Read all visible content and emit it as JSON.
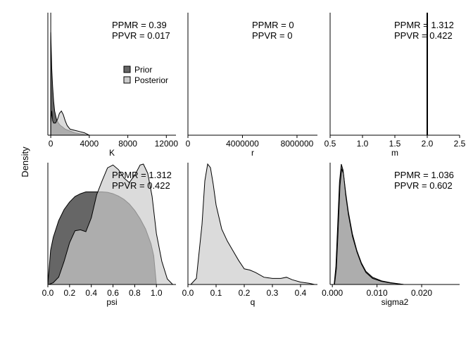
{
  "figure": {
    "ylabel": "Density",
    "legend": {
      "position": "middle-right of first panel",
      "entries": [
        {
          "label": "Prior",
          "color": "#666666"
        },
        {
          "label": "Posterior",
          "color": "#cccccc"
        }
      ]
    }
  },
  "chart_data": [
    {
      "type": "area",
      "xlabel": "K",
      "xlim": [
        -300,
        13000
      ],
      "xticks": [
        0,
        4000,
        8000,
        12000
      ],
      "xtick_labels": [
        "0",
        "4000",
        "8000",
        "12000"
      ],
      "annotation": [
        "PPMR = 0.39",
        "PPVR = 0.017"
      ],
      "vline": 0,
      "series": [
        {
          "name": "Prior",
          "x": [
            0,
            100,
            200,
            300,
            400,
            600,
            800,
            1000,
            1200,
            1500,
            2000,
            2500,
            3000,
            3500,
            4000
          ],
          "y": [
            0.85,
            0.55,
            0.4,
            0.28,
            0.2,
            0.13,
            0.1,
            0.08,
            0.07,
            0.05,
            0.035,
            0.02,
            0.012,
            0.006,
            0
          ]
        },
        {
          "name": "Posterior",
          "x": [
            0,
            100,
            200,
            300,
            400,
            500,
            700,
            900,
            1100,
            1300,
            1500,
            1700,
            2000,
            2500,
            3000,
            3500,
            4000
          ],
          "y": [
            0.1,
            0.2,
            0.12,
            0.1,
            0.1,
            0.1,
            0.13,
            0.18,
            0.2,
            0.17,
            0.12,
            0.08,
            0.05,
            0.04,
            0.03,
            0.02,
            0
          ]
        }
      ]
    },
    {
      "type": "area",
      "xlabel": "r",
      "xlim": [
        0,
        9500000
      ],
      "xticks": [
        0,
        4000000,
        8000000
      ],
      "xtick_labels": [
        "0",
        "4000000",
        "8000000"
      ],
      "annotation": [
        "PPMR = 0",
        "PPVR = 0"
      ],
      "series": []
    },
    {
      "type": "area",
      "xlabel": "m",
      "xlim": [
        0.5,
        2.5
      ],
      "xticks": [
        0.5,
        1.0,
        1.5,
        2.0,
        2.5
      ],
      "xtick_labels": [
        "0.5",
        "1.0",
        "1.5",
        "2.0",
        "2.5"
      ],
      "annotation": [
        "PPMR = 1.312",
        "PPVR = 0.422"
      ],
      "vline": 2.0,
      "series": []
    },
    {
      "type": "area",
      "xlabel": "psi",
      "xlim": [
        0,
        1.18
      ],
      "xticks": [
        0,
        0.2,
        0.4,
        0.6,
        0.8,
        1.0
      ],
      "xtick_labels": [
        "0.0",
        "0.2",
        "0.4",
        "0.6",
        "0.8",
        "1.0"
      ],
      "annotation": [
        "PPMR = 1.312",
        "PPVR = 0.422"
      ],
      "series": [
        {
          "name": "Prior",
          "x": [
            0,
            0.025,
            0.05,
            0.1,
            0.15,
            0.2,
            0.25,
            0.3,
            0.35,
            0.4,
            0.45,
            0.5,
            0.55,
            0.6,
            0.65,
            0.7,
            0.75,
            0.8,
            0.85,
            0.9,
            0.95,
            0.975,
            1.0
          ],
          "y": [
            0,
            0.37,
            0.51,
            0.69,
            0.81,
            0.89,
            0.95,
            0.98,
            1.0,
            1.0,
            1.0,
            1.0,
            0.995,
            0.98,
            0.955,
            0.92,
            0.87,
            0.8,
            0.71,
            0.6,
            0.44,
            0.31,
            0
          ]
        },
        {
          "name": "Posterior",
          "x": [
            0.01,
            0.05,
            0.1,
            0.15,
            0.2,
            0.25,
            0.3,
            0.35,
            0.4,
            0.45,
            0.5,
            0.55,
            0.6,
            0.65,
            0.7,
            0.75,
            0.8,
            0.85,
            0.88,
            0.92,
            0.96,
            1.0,
            1.05,
            1.1,
            1.15
          ],
          "y": [
            0,
            0.02,
            0.08,
            0.25,
            0.45,
            0.58,
            0.59,
            0.57,
            0.72,
            0.97,
            1.12,
            1.26,
            1.29,
            1.24,
            1.15,
            1.1,
            1.18,
            1.29,
            1.3,
            1.2,
            0.95,
            0.55,
            0.25,
            0.06,
            0
          ]
        }
      ]
    },
    {
      "type": "area",
      "xlabel": "q",
      "xlim": [
        0,
        0.46
      ],
      "xticks": [
        0,
        0.1,
        0.2,
        0.3,
        0.4
      ],
      "xtick_labels": [
        "0.0",
        "0.1",
        "0.2",
        "0.3",
        "0.4"
      ],
      "annotation": [],
      "series": [
        {
          "name": "Posterior",
          "x": [
            0.01,
            0.03,
            0.05,
            0.06,
            0.07,
            0.08,
            0.09,
            0.1,
            0.12,
            0.14,
            0.16,
            0.18,
            0.2,
            0.22,
            0.24,
            0.27,
            0.3,
            0.33,
            0.35,
            0.37,
            0.4,
            0.43,
            0.45
          ],
          "y": [
            0,
            0.05,
            0.5,
            0.86,
            1.0,
            0.97,
            0.83,
            0.66,
            0.46,
            0.36,
            0.28,
            0.2,
            0.13,
            0.12,
            0.1,
            0.06,
            0.05,
            0.05,
            0.06,
            0.04,
            0.02,
            0.01,
            0
          ]
        }
      ]
    },
    {
      "type": "area",
      "xlabel": "sigma2",
      "xlim": [
        -0.0005,
        0.0285
      ],
      "xticks": [
        0,
        0.01,
        0.02
      ],
      "xtick_labels": [
        "0.000",
        "0.010",
        "0.020"
      ],
      "annotation": [
        "PPMR = 1.036",
        "PPVR = 0.602"
      ],
      "series": [
        {
          "name": "Prior",
          "x": [
            0.0004,
            0.0008,
            0.0012,
            0.0016,
            0.002,
            0.0024,
            0.003,
            0.0036,
            0.0045,
            0.0055,
            0.0065,
            0.0075,
            0.009,
            0.011,
            0.013,
            0.016
          ],
          "y": [
            0,
            0.15,
            0.5,
            0.85,
            1.0,
            0.95,
            0.76,
            0.6,
            0.42,
            0.28,
            0.18,
            0.11,
            0.06,
            0.03,
            0.015,
            0
          ]
        },
        {
          "name": "Posterior",
          "x": [
            0.0005,
            0.0009,
            0.0013,
            0.0017,
            0.0021,
            0.0025,
            0.003,
            0.0036,
            0.0045,
            0.0055,
            0.0065,
            0.0075,
            0.009,
            0.011,
            0.013,
            0.016
          ],
          "y": [
            0,
            0.13,
            0.45,
            0.82,
            0.96,
            0.92,
            0.74,
            0.58,
            0.4,
            0.27,
            0.17,
            0.1,
            0.05,
            0.025,
            0.012,
            0
          ]
        }
      ]
    }
  ]
}
